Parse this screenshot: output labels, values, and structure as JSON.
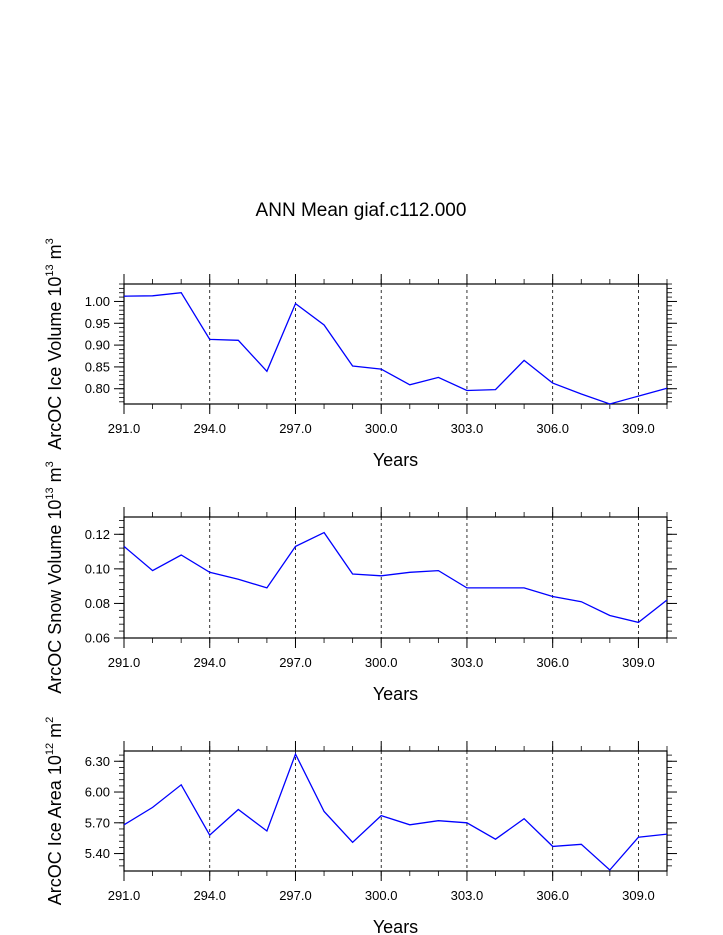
{
  "figure_title": "ANN Mean giaf.c112.000",
  "chart_data": [
    {
      "type": "line",
      "title": "ANN Mean giaf.c112.000",
      "xlabel": "Years",
      "ylabel": "ArcOC Ice Volume 10",
      "ylabel_sup": "13",
      "ylabel_unit": " m",
      "ylabel_unit_sup": "3",
      "xlim": [
        291,
        310
      ],
      "ylim": [
        0.765,
        1.04
      ],
      "xticks": [
        "291.0",
        "294.0",
        "297.0",
        "300.0",
        "303.0",
        "306.0",
        "309.0"
      ],
      "xtick_values": [
        291,
        294,
        297,
        300,
        303,
        306,
        309
      ],
      "yticks": [
        "0.80",
        "0.85",
        "0.90",
        "0.95",
        "1.00"
      ],
      "ytick_values": [
        0.8,
        0.85,
        0.9,
        0.95,
        1.0
      ],
      "grid_x_dashed": [
        294,
        297,
        300,
        303,
        306,
        309
      ],
      "line_color": "#0000ff",
      "x": [
        291,
        292,
        293,
        294,
        295,
        296,
        297,
        298,
        299,
        300,
        301,
        302,
        303,
        304,
        305,
        306,
        307,
        308,
        309,
        310
      ],
      "values": [
        1.012,
        1.013,
        1.02,
        0.913,
        0.911,
        0.84,
        0.995,
        0.946,
        0.852,
        0.845,
        0.809,
        0.826,
        0.796,
        0.798,
        0.865,
        0.813,
        0.788,
        0.765,
        0.783,
        0.801
      ]
    },
    {
      "type": "line",
      "title": "",
      "xlabel": "Years",
      "ylabel": "ArcOC Snow Volume 10",
      "ylabel_sup": "13",
      "ylabel_unit": " m",
      "ylabel_unit_sup": "3",
      "xlim": [
        291,
        310
      ],
      "ylim": [
        0.06,
        0.13
      ],
      "xticks": [
        "291.0",
        "294.0",
        "297.0",
        "300.0",
        "303.0",
        "306.0",
        "309.0"
      ],
      "xtick_values": [
        291,
        294,
        297,
        300,
        303,
        306,
        309
      ],
      "yticks": [
        "0.06",
        "0.08",
        "0.10",
        "0.12"
      ],
      "ytick_values": [
        0.06,
        0.08,
        0.1,
        0.12
      ],
      "grid_x_dashed": [
        294,
        297,
        300,
        303,
        306,
        309
      ],
      "line_color": "#0000ff",
      "x": [
        291,
        292,
        293,
        294,
        295,
        296,
        297,
        298,
        299,
        300,
        301,
        302,
        303,
        304,
        305,
        306,
        307,
        308,
        309,
        310
      ],
      "values": [
        0.113,
        0.099,
        0.108,
        0.098,
        0.094,
        0.089,
        0.113,
        0.121,
        0.097,
        0.096,
        0.098,
        0.099,
        0.089,
        0.089,
        0.089,
        0.084,
        0.081,
        0.073,
        0.069,
        0.082
      ]
    },
    {
      "type": "line",
      "title": "",
      "xlabel": "Years",
      "ylabel": "ArcOC Ice Area 10",
      "ylabel_sup": "12",
      "ylabel_unit": " m",
      "ylabel_unit_sup": "2",
      "xlim": [
        291,
        310
      ],
      "ylim": [
        5.23,
        6.4
      ],
      "xticks": [
        "291.0",
        "294.0",
        "297.0",
        "300.0",
        "303.0",
        "306.0",
        "309.0"
      ],
      "xtick_values": [
        291,
        294,
        297,
        300,
        303,
        306,
        309
      ],
      "yticks": [
        "5.40",
        "5.70",
        "6.00",
        "6.30"
      ],
      "ytick_values": [
        5.4,
        5.7,
        6.0,
        6.3
      ],
      "grid_x_dashed": [
        294,
        297,
        300,
        303,
        306,
        309
      ],
      "line_color": "#0000ff",
      "x": [
        291,
        292,
        293,
        294,
        295,
        296,
        297,
        298,
        299,
        300,
        301,
        302,
        303,
        304,
        305,
        306,
        307,
        308,
        309,
        310
      ],
      "values": [
        5.68,
        5.85,
        6.07,
        5.58,
        5.83,
        5.62,
        6.37,
        5.81,
        5.51,
        5.77,
        5.68,
        5.72,
        5.7,
        5.54,
        5.74,
        5.47,
        5.49,
        5.24,
        5.56,
        5.59
      ]
    }
  ]
}
